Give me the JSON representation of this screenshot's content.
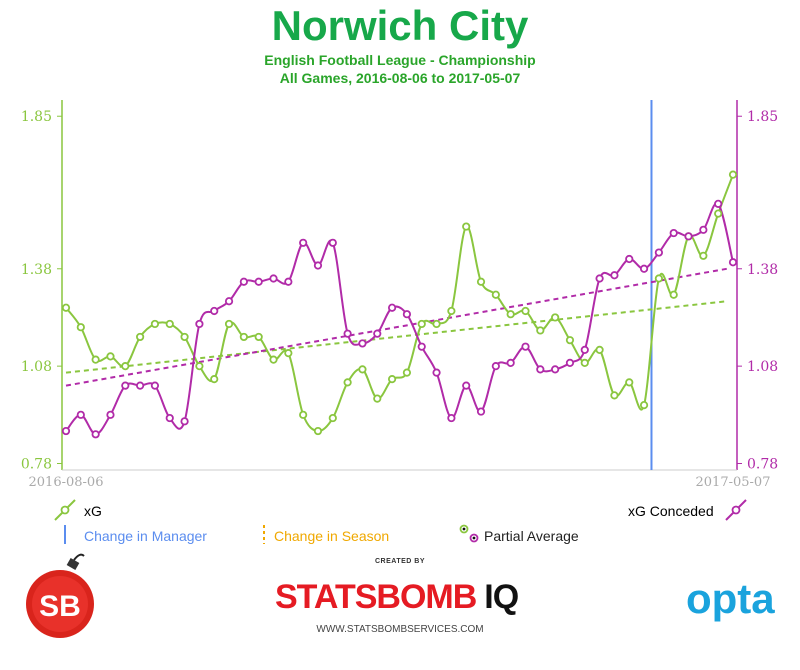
{
  "title": "Norwich City",
  "subtitle_line1": "English Football League - Championship",
  "subtitle_line2": "All Games, 2016-08-06 to 2017-05-07",
  "colors": {
    "xg": "#8ac63f",
    "xg_conceded": "#b12ba8",
    "manager_change": "#5b8def",
    "season_change": "#f0a800",
    "title": "#17a84a"
  },
  "legend": {
    "xg": "xG",
    "xg_conceded": "xG Conceded",
    "manager_change": "Change in Manager",
    "season_change": "Change in Season",
    "partial_average": "Partial Average"
  },
  "footer": {
    "created_by": "CREATED BY",
    "brand": "STATSBOMB",
    "brand_suffix": "IQ",
    "url": "WWW.STATSBOMBSERVICES.COM",
    "partner": "opta",
    "logo_text": "SB"
  },
  "chart_data": {
    "type": "line",
    "title": "Norwich City",
    "x_start_label": "2016-08-06",
    "x_end_label": "2017-05-07",
    "ylim": [
      0.76,
      1.9
    ],
    "y_ticks": [
      0.78,
      1.08,
      1.38,
      1.85
    ],
    "y_tick_labels": [
      "0.78",
      "1.08",
      "1.38",
      "1.85"
    ],
    "manager_change_game": 40,
    "series": [
      {
        "name": "xG",
        "values": [
          1.26,
          1.2,
          1.1,
          1.11,
          1.08,
          1.17,
          1.21,
          1.21,
          1.17,
          1.08,
          1.04,
          1.21,
          1.17,
          1.17,
          1.1,
          1.12,
          0.93,
          0.88,
          0.92,
          1.03,
          1.07,
          0.98,
          1.04,
          1.06,
          1.21,
          1.21,
          1.25,
          1.51,
          1.34,
          1.3,
          1.24,
          1.25,
          1.19,
          1.23,
          1.16,
          1.09,
          1.13,
          0.99,
          1.03,
          0.96,
          1.35,
          1.3,
          1.48,
          1.42,
          1.55,
          1.67
        ],
        "trend": [
          1.06,
          1.28
        ]
      },
      {
        "name": "xG Conceded",
        "values": [
          0.88,
          0.93,
          0.87,
          0.93,
          1.02,
          1.02,
          1.02,
          0.92,
          0.91,
          1.21,
          1.25,
          1.28,
          1.34,
          1.34,
          1.35,
          1.34,
          1.46,
          1.39,
          1.46,
          1.18,
          1.15,
          1.18,
          1.26,
          1.24,
          1.14,
          1.06,
          0.92,
          1.02,
          0.94,
          1.08,
          1.09,
          1.14,
          1.07,
          1.07,
          1.09,
          1.13,
          1.35,
          1.36,
          1.41,
          1.38,
          1.43,
          1.49,
          1.48,
          1.5,
          1.58,
          1.4
        ],
        "trend": [
          1.02,
          1.38
        ]
      }
    ]
  }
}
